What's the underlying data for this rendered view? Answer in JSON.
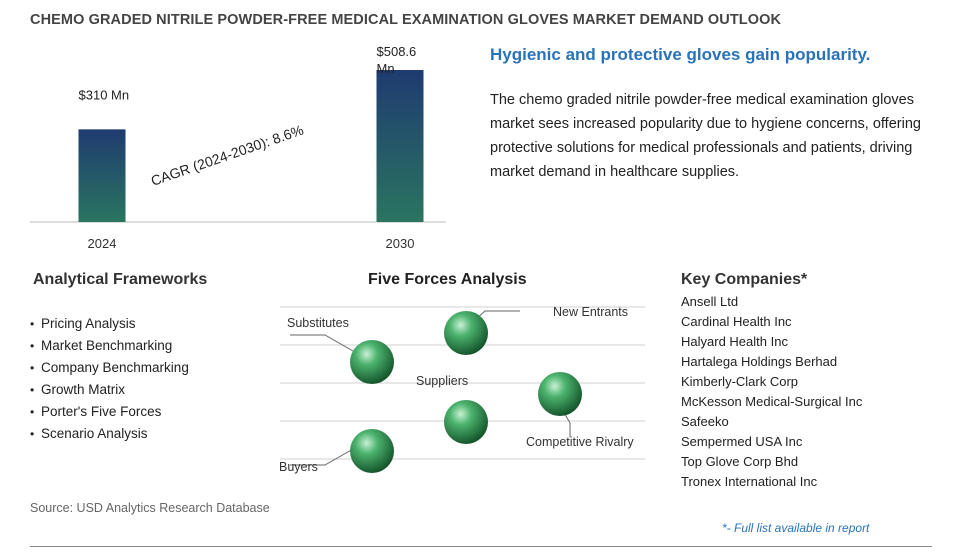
{
  "title": "CHEMO GRADED NITRILE POWDER-FREE MEDICAL EXAMINATION GLOVES MARKET DEMAND OUTLOOK",
  "chart_data": {
    "type": "bar",
    "categories": [
      "2024",
      "2030"
    ],
    "values": [
      310,
      508.6
    ],
    "data_labels": [
      "$310 Mn",
      "$508.6 Mn"
    ],
    "annotation": "CAGR (2024-2030):  8.6%",
    "colors": {
      "bar_top": "#1f3b70",
      "bar_bottom": "#2a7560"
    }
  },
  "headline": "Hygienic and protective gloves gain popularity.",
  "description": "The chemo graded nitrile powder-free medical examination gloves market sees increased popularity due to hygiene concerns, offering protective solutions for medical professionals and patients, driving market demand in healthcare supplies.",
  "analytical_frameworks": {
    "title": "Analytical Frameworks",
    "items": [
      "Pricing Analysis",
      "Market Benchmarking",
      "Company Benchmarking",
      "Growth Matrix",
      "Porter's Five Forces",
      "Scenario Analysis"
    ]
  },
  "five_forces": {
    "title": "Five Forces Analysis",
    "labels": {
      "substitutes": "Substitutes",
      "new_entrants": "New Entrants",
      "suppliers": "Suppliers",
      "competitive_rivalry": "Competitive Rivalry",
      "buyers": "Buyers"
    }
  },
  "key_companies": {
    "title": "Key Companies*",
    "items": [
      "Ansell Ltd",
      "Cardinal Health Inc",
      "Halyard Health Inc",
      "Hartalega Holdings Berhad",
      "Kimberly-Clark Corp",
      "McKesson Medical-Surgical Inc",
      "Safeeko",
      "Sempermed USA Inc",
      "Top Glove Corp Bhd",
      "Tronex International Inc"
    ]
  },
  "source": "Source: USD Analytics Research Database",
  "footnote": "*- Full list available in report"
}
